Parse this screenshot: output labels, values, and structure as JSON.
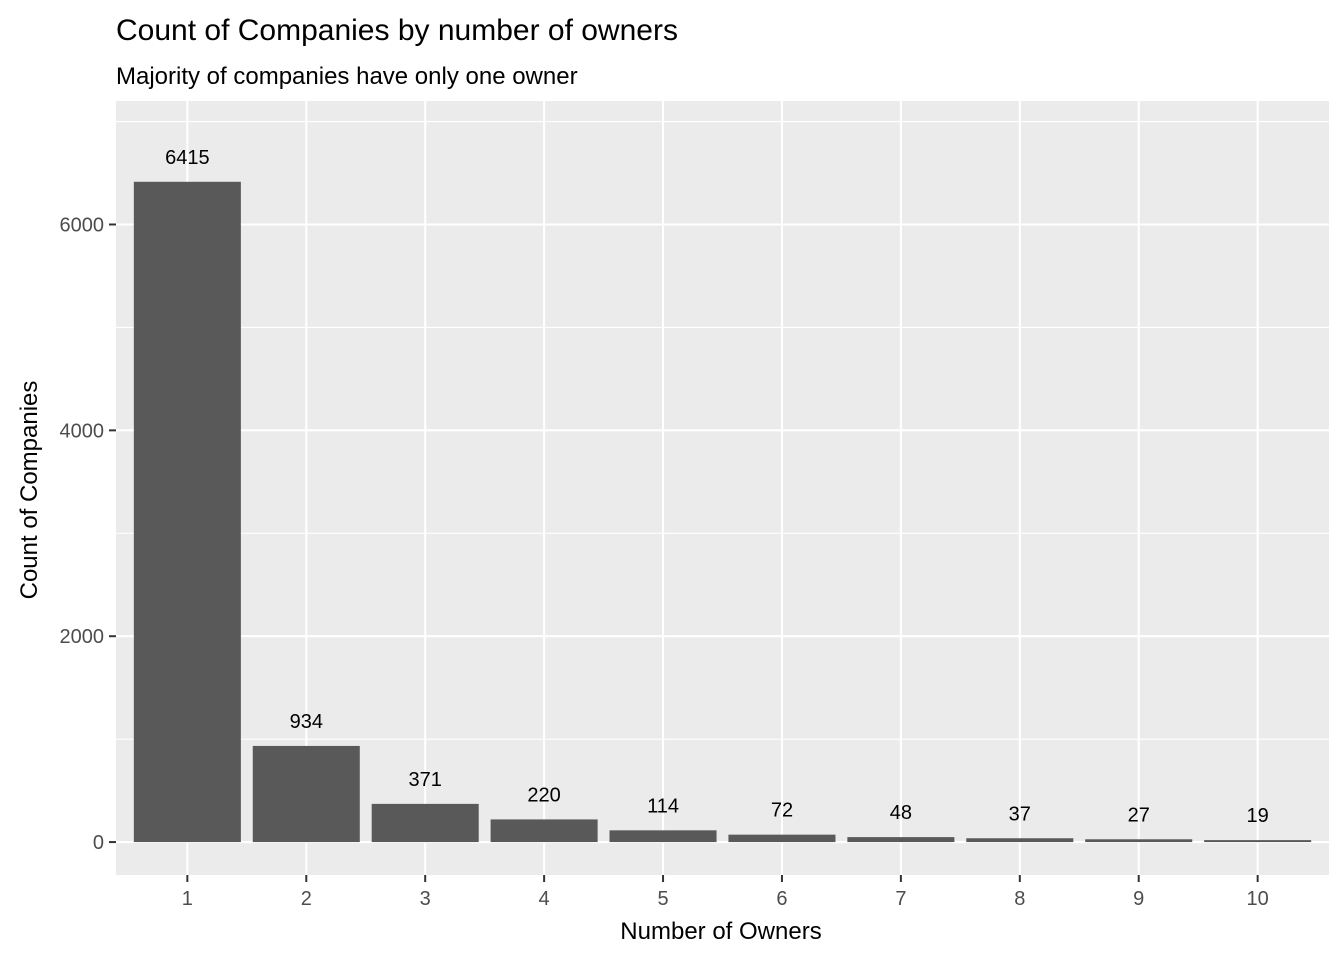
{
  "chart_data": {
    "type": "bar",
    "title": "Count of Companies by number of owners",
    "subtitle": "Majority of companies have only one owner",
    "xlabel": "Number of Owners",
    "ylabel": "Count of Companies",
    "categories": [
      "1",
      "2",
      "3",
      "4",
      "5",
      "6",
      "7",
      "8",
      "9",
      "10"
    ],
    "values": [
      6415,
      934,
      371,
      220,
      114,
      72,
      48,
      37,
      27,
      19
    ],
    "data_labels": [
      "6415",
      "934",
      "371",
      "220",
      "114",
      "72",
      "48",
      "37",
      "27",
      "19"
    ],
    "yticks": [
      0,
      2000,
      4000,
      6000
    ],
    "ytick_labels": [
      "0",
      "2000",
      "4000",
      "6000"
    ],
    "ylim": [
      -320,
      7200
    ],
    "grid": true,
    "colors": {
      "bar": "#595959",
      "panel": "#ebebeb",
      "grid": "#ffffff",
      "tick_text": "#4d4d4d"
    }
  }
}
